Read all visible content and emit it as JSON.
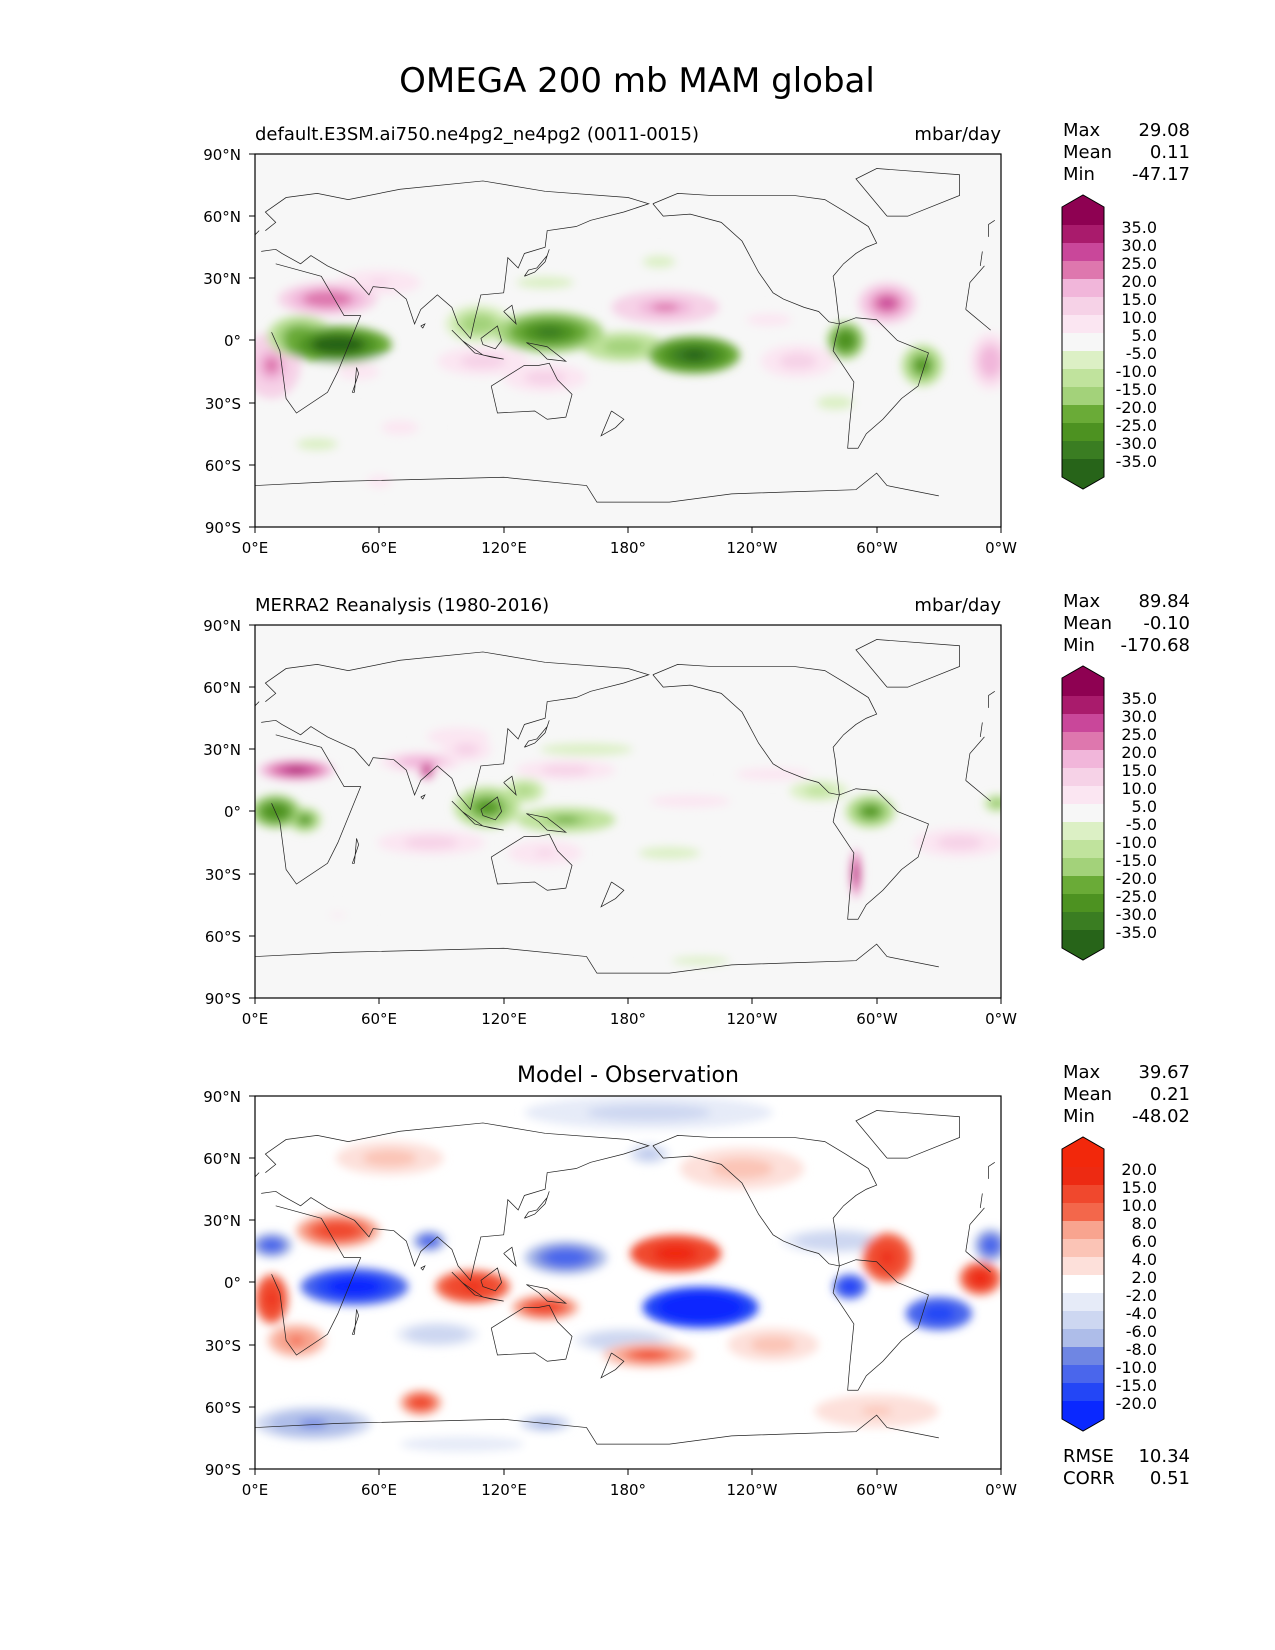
{
  "figure": {
    "title": "OMEGA 200 mb MAM global"
  },
  "colors": {
    "ocean": "#f7f7f7",
    "coast": "#222222",
    "omega_scale": [
      "#276419",
      "#3a7d22",
      "#4d9221",
      "#6aab37",
      "#86c05a",
      "#a3d27a",
      "#c0e39d",
      "#dcf0c5",
      "#f7f7f7",
      "#fbe6f2",
      "#f6d2e7",
      "#f1b6da",
      "#e794c6",
      "#de77ae",
      "#c9479a",
      "#a91b6c",
      "#8e0152"
    ],
    "diff_scale": [
      "#0a28ff",
      "#2346f6",
      "#4a66ec",
      "#6f86e3",
      "#8fa2e6",
      "#aebde9",
      "#cdd7f1",
      "#e6ebf8",
      "#ffffff",
      "#fde0da",
      "#fbc4b6",
      "#f8a48f",
      "#f6866b",
      "#f3674b",
      "#f0482d",
      "#ed2a12",
      "#f2280b"
    ]
  },
  "chart_data": [
    {
      "id": "test",
      "type": "heatmap",
      "left_title": "default.E3SM.ai750.ne4pg2_ne4pg2 (0011-0015)",
      "center_title": "",
      "right_title": "mbar/day",
      "stats": [
        {
          "label": "Max",
          "value": "29.08"
        },
        {
          "label": "Mean",
          "value": "0.11"
        },
        {
          "label": "Min",
          "value": "-47.17"
        }
      ],
      "colorbar_labels": [
        "35.0",
        "30.0",
        "25.0",
        "20.0",
        "15.0",
        "10.0",
        "5.0",
        "-5.0",
        "-10.0",
        "-15.0",
        "-20.0",
        "-25.0",
        "-30.0",
        "-35.0"
      ],
      "colorbar_levels": [
        -35,
        -30,
        -25,
        -20,
        -15,
        -10,
        -5,
        5,
        10,
        15,
        20,
        25,
        30,
        35
      ],
      "xticks": [
        "0°E",
        "60°E",
        "120°E",
        "180°",
        "120°W",
        "60°W",
        "0°W"
      ],
      "yticks": [
        "90°N",
        "60°N",
        "30°N",
        "0°",
        "30°S",
        "60°S",
        "90°S"
      ],
      "xlim": [
        0,
        360
      ],
      "ylim": [
        -90,
        90
      ],
      "fields": [
        {
          "lon": 40,
          "lat": -2,
          "rlon": 26,
          "rlat": 9,
          "value": -42
        },
        {
          "lon": 22,
          "lat": 2,
          "rlon": 16,
          "rlat": 10,
          "value": -26
        },
        {
          "lon": 142,
          "lat": 4,
          "rlon": 26,
          "rlat": 10,
          "value": -32
        },
        {
          "lon": 108,
          "lat": 8,
          "rlon": 16,
          "rlat": 9,
          "value": -18
        },
        {
          "lon": 212,
          "lat": -7,
          "rlon": 22,
          "rlat": 9,
          "value": -40
        },
        {
          "lon": 178,
          "lat": -3,
          "rlon": 20,
          "rlat": 7,
          "value": -20
        },
        {
          "lon": 285,
          "lat": 0,
          "rlon": 9,
          "rlat": 9,
          "value": -30
        },
        {
          "lon": 322,
          "lat": -12,
          "rlon": 10,
          "rlat": 10,
          "value": -28
        },
        {
          "lon": 140,
          "lat": 28,
          "rlon": 28,
          "rlat": 6,
          "value": -6
        },
        {
          "lon": 195,
          "lat": 38,
          "rlon": 16,
          "rlat": 6,
          "value": -6
        },
        {
          "lon": 280,
          "lat": -30,
          "rlon": 18,
          "rlat": 7,
          "value": -6
        },
        {
          "lon": 30,
          "lat": -50,
          "rlon": 20,
          "rlat": 6,
          "value": -6
        },
        {
          "lon": 35,
          "lat": 20,
          "rlon": 24,
          "rlat": 8,
          "value": 24
        },
        {
          "lon": 8,
          "lat": -12,
          "rlon": 14,
          "rlat": 16,
          "value": 22
        },
        {
          "lon": 198,
          "lat": 16,
          "rlon": 26,
          "rlat": 8,
          "value": 20
        },
        {
          "lon": 305,
          "lat": 18,
          "rlon": 14,
          "rlat": 10,
          "value": 25
        },
        {
          "lon": 355,
          "lat": -10,
          "rlon": 10,
          "rlat": 14,
          "value": 18
        },
        {
          "lon": 110,
          "lat": -10,
          "rlon": 22,
          "rlat": 7,
          "value": 14
        },
        {
          "lon": 262,
          "lat": -10,
          "rlon": 18,
          "rlat": 8,
          "value": 14
        },
        {
          "lon": 140,
          "lat": -18,
          "rlon": 20,
          "rlat": 7,
          "value": 12
        },
        {
          "lon": 60,
          "lat": 28,
          "rlon": 20,
          "rlat": 6,
          "value": 10
        },
        {
          "lon": 50,
          "lat": -15,
          "rlon": 20,
          "rlat": 8,
          "value": 7
        },
        {
          "lon": 60,
          "lat": -68,
          "rlon": 12,
          "rlat": 6,
          "value": 6
        },
        {
          "lon": 70,
          "lat": -42,
          "rlon": 18,
          "rlat": 7,
          "value": 7
        },
        {
          "lon": 248,
          "lat": 10,
          "rlon": 22,
          "rlat": 6,
          "value": 7
        }
      ]
    },
    {
      "id": "reference",
      "type": "heatmap",
      "left_title": "MERRA2 Reanalysis (1980-2016)",
      "center_title": "",
      "right_title": "mbar/day",
      "stats": [
        {
          "label": "Max",
          "value": "89.84"
        },
        {
          "label": "Mean",
          "value": "-0.10"
        },
        {
          "label": "Min",
          "value": "-170.68"
        }
      ],
      "colorbar_labels": [
        "35.0",
        "30.0",
        "25.0",
        "20.0",
        "15.0",
        "10.0",
        "5.0",
        "-5.0",
        "-10.0",
        "-15.0",
        "-20.0",
        "-25.0",
        "-30.0",
        "-35.0"
      ],
      "colorbar_levels": [
        -35,
        -30,
        -25,
        -20,
        -15,
        -10,
        -5,
        5,
        10,
        15,
        20,
        25,
        30,
        35
      ],
      "xticks": [
        "0°E",
        "60°E",
        "120°E",
        "180°",
        "120°W",
        "60°W",
        "0°W"
      ],
      "yticks": [
        "90°N",
        "60°N",
        "30°N",
        "0°",
        "30°S",
        "60°S",
        "90°S"
      ],
      "xlim": [
        0,
        360
      ],
      "ylim": [
        -90,
        90
      ],
      "fields": [
        {
          "lon": 20,
          "lat": 20,
          "rlon": 18,
          "rlat": 5,
          "value": 32
        },
        {
          "lon": 80,
          "lat": 24,
          "rlon": 20,
          "rlat": 5,
          "value": 18
        },
        {
          "lon": 83,
          "lat": 20,
          "rlon": 4,
          "rlat": 5,
          "value": 34
        },
        {
          "lon": 102,
          "lat": 30,
          "rlon": 12,
          "rlat": 6,
          "value": 12
        },
        {
          "lon": 98,
          "lat": 36,
          "rlon": 20,
          "rlat": 6,
          "value": 9
        },
        {
          "lon": 10,
          "lat": 0,
          "rlon": 12,
          "rlat": 8,
          "value": -30
        },
        {
          "lon": 24,
          "lat": -4,
          "rlon": 8,
          "rlat": 6,
          "value": -26
        },
        {
          "lon": 112,
          "lat": 2,
          "rlon": 16,
          "rlat": 10,
          "value": -26
        },
        {
          "lon": 150,
          "lat": -4,
          "rlon": 24,
          "rlat": 6,
          "value": -22
        },
        {
          "lon": 130,
          "lat": 10,
          "rlon": 10,
          "rlat": 6,
          "value": -16
        },
        {
          "lon": 297,
          "lat": 0,
          "rlon": 12,
          "rlat": 8,
          "value": -28
        },
        {
          "lon": 272,
          "lat": 10,
          "rlon": 14,
          "rlat": 5,
          "value": -14
        },
        {
          "lon": 358,
          "lat": 4,
          "rlon": 6,
          "rlat": 4,
          "value": -22
        },
        {
          "lon": 160,
          "lat": 30,
          "rlon": 30,
          "rlat": 4,
          "value": -8
        },
        {
          "lon": 200,
          "lat": -20,
          "rlon": 20,
          "rlat": 4,
          "value": -8
        },
        {
          "lon": 215,
          "lat": -72,
          "rlon": 28,
          "rlat": 4,
          "value": -6
        },
        {
          "lon": 290,
          "lat": -30,
          "rlon": 3,
          "rlat": 12,
          "value": 32
        },
        {
          "lon": 85,
          "lat": -15,
          "rlon": 26,
          "rlat": 6,
          "value": 14
        },
        {
          "lon": 150,
          "lat": 20,
          "rlon": 24,
          "rlat": 5,
          "value": 12
        },
        {
          "lon": 210,
          "lat": 5,
          "rlon": 26,
          "rlat": 4,
          "value": 8
        },
        {
          "lon": 250,
          "lat": 18,
          "rlon": 24,
          "rlat": 4,
          "value": 8
        },
        {
          "lon": 340,
          "lat": -15,
          "rlon": 22,
          "rlat": 7,
          "value": 14
        },
        {
          "lon": 140,
          "lat": -20,
          "rlon": 18,
          "rlat": 6,
          "value": 10
        },
        {
          "lon": 40,
          "lat": -50,
          "rlon": 16,
          "rlat": 4,
          "value": 5
        }
      ]
    },
    {
      "id": "difference",
      "type": "heatmap",
      "left_title": "",
      "center_title": "Model - Observation",
      "right_title": "",
      "stats": [
        {
          "label": "Max",
          "value": "39.67"
        },
        {
          "label": "Mean",
          "value": "0.21"
        },
        {
          "label": "Min",
          "value": "-48.02"
        }
      ],
      "extra_stats": [
        {
          "label": "RMSE",
          "value": "10.34"
        },
        {
          "label": "CORR",
          "value": "0.51"
        }
      ],
      "colorbar_labels": [
        "20.0",
        "15.0",
        "10.0",
        "8.0",
        "6.0",
        "4.0",
        "2.0",
        "-2.0",
        "-4.0",
        "-6.0",
        "-8.0",
        "-10.0",
        "-15.0",
        "-20.0"
      ],
      "colorbar_levels": [
        -20,
        -15,
        -10,
        -8,
        -6,
        -4,
        -2,
        2,
        4,
        6,
        8,
        10,
        15,
        20
      ],
      "xticks": [
        "0°E",
        "60°E",
        "120°E",
        "180°",
        "120°W",
        "60°W",
        "0°W"
      ],
      "yticks": [
        "90°N",
        "60°N",
        "30°N",
        "0°",
        "30°S",
        "60°S",
        "90°S"
      ],
      "xlim": [
        0,
        360
      ],
      "ylim": [
        -90,
        90
      ],
      "fields": [
        {
          "lon": 48,
          "lat": -2,
          "rlon": 26,
          "rlat": 9,
          "value": -26
        },
        {
          "lon": 215,
          "lat": -12,
          "rlon": 28,
          "rlat": 10,
          "value": -30
        },
        {
          "lon": 330,
          "lat": -15,
          "rlon": 16,
          "rlat": 8,
          "value": -20
        },
        {
          "lon": 287,
          "lat": -2,
          "rlon": 8,
          "rlat": 6,
          "value": -22
        },
        {
          "lon": 150,
          "lat": 12,
          "rlon": 20,
          "rlat": 8,
          "value": -12
        },
        {
          "lon": 84,
          "lat": 20,
          "rlon": 8,
          "rlat": 5,
          "value": -14
        },
        {
          "lon": 8,
          "lat": 18,
          "rlon": 10,
          "rlat": 6,
          "value": -12
        },
        {
          "lon": 355,
          "lat": 18,
          "rlon": 8,
          "rlat": 8,
          "value": -14
        },
        {
          "lon": 280,
          "lat": 20,
          "rlon": 26,
          "rlat": 6,
          "value": -6
        },
        {
          "lon": 190,
          "lat": 82,
          "rlon": 60,
          "rlat": 8,
          "value": -5
        },
        {
          "lon": 190,
          "lat": 62,
          "rlon": 10,
          "rlat": 5,
          "value": -7
        },
        {
          "lon": 28,
          "lat": -68,
          "rlon": 28,
          "rlat": 8,
          "value": -9
        },
        {
          "lon": 140,
          "lat": -68,
          "rlon": 12,
          "rlat": 4,
          "value": -8
        },
        {
          "lon": 88,
          "lat": -25,
          "rlon": 20,
          "rlat": 6,
          "value": -6
        },
        {
          "lon": 178,
          "lat": -28,
          "rlon": 24,
          "rlat": 6,
          "value": -6
        },
        {
          "lon": 100,
          "lat": -78,
          "rlon": 40,
          "rlat": 5,
          "value": -3
        },
        {
          "lon": 8,
          "lat": -8,
          "rlon": 8,
          "rlat": 12,
          "value": 16
        },
        {
          "lon": 40,
          "lat": 25,
          "rlon": 20,
          "rlat": 8,
          "value": 12
        },
        {
          "lon": 105,
          "lat": -2,
          "rlon": 18,
          "rlat": 8,
          "value": 16
        },
        {
          "lon": 140,
          "lat": -12,
          "rlon": 16,
          "rlat": 6,
          "value": 12
        },
        {
          "lon": 203,
          "lat": 14,
          "rlon": 22,
          "rlat": 9,
          "value": 20
        },
        {
          "lon": 305,
          "lat": 12,
          "rlon": 12,
          "rlat": 12,
          "value": 16
        },
        {
          "lon": 350,
          "lat": 2,
          "rlon": 10,
          "rlat": 8,
          "value": 18
        },
        {
          "lon": 190,
          "lat": -35,
          "rlon": 22,
          "rlat": 6,
          "value": 10
        },
        {
          "lon": 20,
          "lat": -28,
          "rlon": 14,
          "rlat": 8,
          "value": 9
        },
        {
          "lon": 80,
          "lat": -58,
          "rlon": 10,
          "rlat": 6,
          "value": 12
        },
        {
          "lon": 65,
          "lat": 60,
          "rlon": 26,
          "rlat": 8,
          "value": 5
        },
        {
          "lon": 235,
          "lat": 55,
          "rlon": 30,
          "rlat": 10,
          "value": 5
        },
        {
          "lon": 300,
          "lat": -62,
          "rlon": 30,
          "rlat": 8,
          "value": 4
        },
        {
          "lon": 250,
          "lat": -30,
          "rlon": 22,
          "rlat": 8,
          "value": 5
        }
      ]
    }
  ]
}
